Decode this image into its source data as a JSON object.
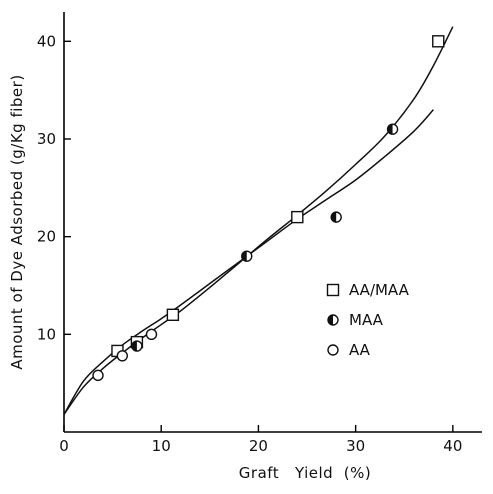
{
  "chart_data": {
    "type": "scatter",
    "title": "",
    "xlabel": "Graft   Yield  (%)",
    "ylabel": "Amount of Dye Adsorbed (g/Kg fiber)",
    "xlim": [
      0,
      43
    ],
    "ylim": [
      0,
      43
    ],
    "x_ticks": [
      0,
      10,
      20,
      30,
      40
    ],
    "x_tick_labels": [
      "0",
      "10",
      "20",
      "30",
      "40"
    ],
    "y_ticks": [
      10,
      20,
      30,
      40
    ],
    "y_tick_labels": [
      "10",
      "20",
      "30",
      "40"
    ],
    "grid": false,
    "legend_position": "right",
    "series": [
      {
        "name": "AA/MAA",
        "marker": "open-square",
        "x": [
          5.5,
          7.5,
          11.2,
          24,
          38.5
        ],
        "y": [
          8.3,
          9.2,
          12,
          22,
          40
        ]
      },
      {
        "name": "MAA",
        "marker": "half-filled-circle",
        "x": [
          7.5,
          18.8,
          28,
          33.8
        ],
        "y": [
          8.8,
          18,
          22,
          31
        ]
      },
      {
        "name": "AA",
        "marker": "open-circle",
        "x": [
          3.5,
          6,
          9
        ],
        "y": [
          5.8,
          7.8,
          10
        ]
      }
    ],
    "fit_curves": [
      {
        "x": [
          0,
          2,
          4,
          6,
          8,
          10,
          12,
          15,
          18,
          21,
          24,
          27,
          30,
          33,
          36,
          38,
          40
        ],
        "y": [
          1.8,
          4.6,
          6.5,
          8.1,
          9.6,
          11,
          12.4,
          14.8,
          17.3,
          19.8,
          22.2,
          24.7,
          27.4,
          30.3,
          34.1,
          37.5,
          41.5
        ]
      },
      {
        "x": [
          0,
          2,
          4,
          6,
          8,
          10,
          12,
          15,
          18,
          21,
          24,
          27,
          30,
          33,
          36,
          38
        ],
        "y": [
          1.8,
          5.2,
          7.2,
          8.9,
          10.3,
          11.6,
          13,
          15.2,
          17.4,
          19.6,
          21.8,
          23.8,
          25.8,
          28.2,
          30.8,
          33
        ]
      }
    ]
  }
}
